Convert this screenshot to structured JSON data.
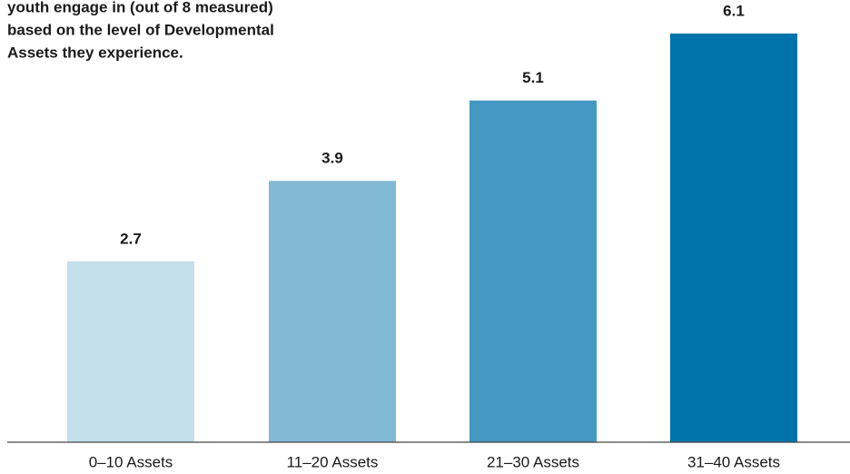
{
  "chart_data": {
    "type": "bar",
    "title": [
      "youth engage in (out of 8 measured)",
      "based on the level of Developmental",
      "Assets they experience."
    ],
    "categories": [
      "0–10 Assets",
      "11–20 Assets",
      "21–30 Assets",
      "31–40 Assets"
    ],
    "values": [
      2.7,
      3.9,
      5.1,
      6.1
    ],
    "colors": [
      "#c2dfea",
      "#82b9d4",
      "#4399c1",
      "#0073aa"
    ],
    "ylim": [
      0,
      6.6
    ]
  }
}
